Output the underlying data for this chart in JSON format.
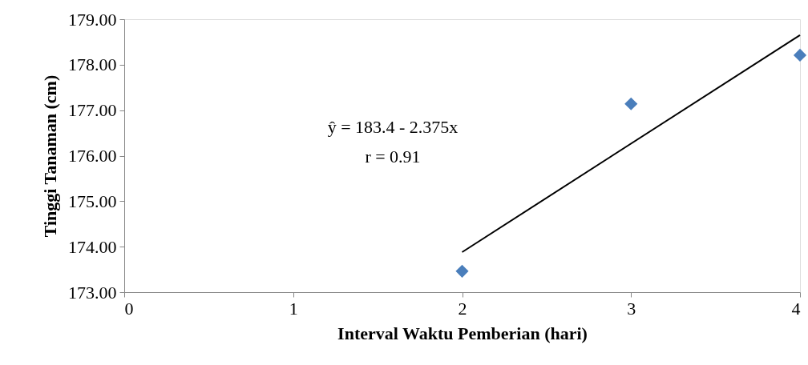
{
  "chart_data": {
    "type": "scatter",
    "xlabel": "Interval Waktu Pemberian (hari)",
    "ylabel": "Tinggi Tanaman (cm)",
    "annotations": [
      "ŷ = 183.4 - 2.375x",
      "r = 0.91"
    ],
    "xlim": [
      0,
      4
    ],
    "xticks": [
      0,
      1,
      2,
      3,
      4
    ],
    "ylim": [
      173,
      179
    ],
    "yticks": [
      {
        "value": 173,
        "label": "173.00"
      },
      {
        "value": 174,
        "label": "174.00"
      },
      {
        "value": 175,
        "label": "175.00"
      },
      {
        "value": 176,
        "label": "176.00"
      },
      {
        "value": 177,
        "label": "177.00"
      },
      {
        "value": 178,
        "label": "178.00"
      },
      {
        "value": 179,
        "label": "179.00"
      }
    ],
    "grid": false,
    "series": [
      {
        "marker": "diamond",
        "color": "#4a7ebb",
        "x": [
          2,
          3,
          4
        ],
        "values": [
          173.46,
          177.14,
          178.21
        ]
      },
      {
        "type": "line",
        "color": "#000000",
        "x": [
          2,
          4
        ],
        "values": [
          173.88,
          178.65
        ],
        "line_style": "solid"
      }
    ]
  }
}
